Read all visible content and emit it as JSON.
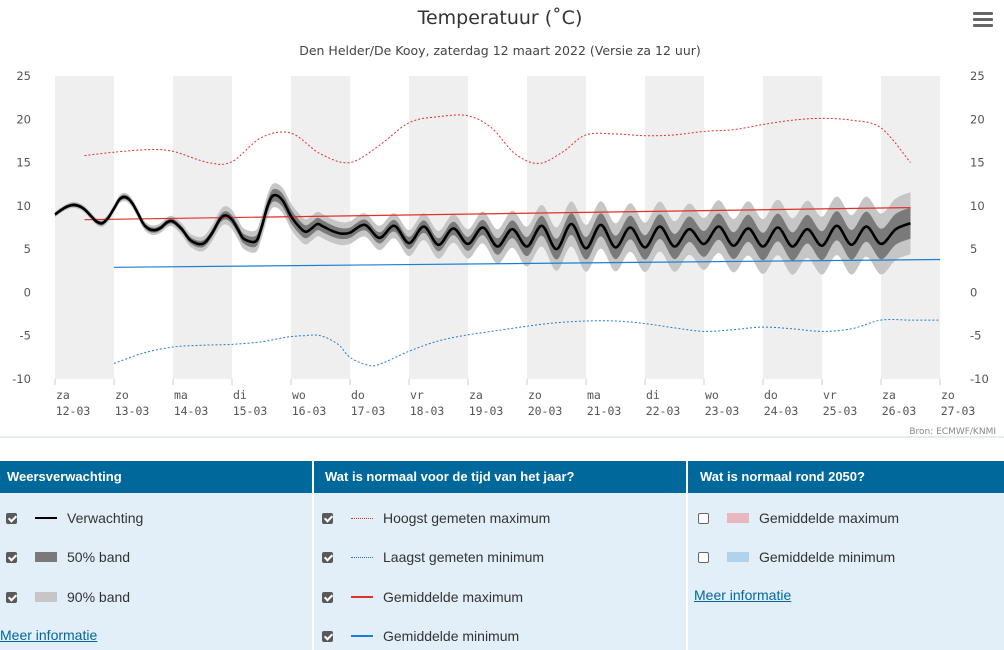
{
  "chart_data": {
    "type": "line",
    "title": "Temperatuur (˚C)",
    "subtitle": "Den Helder/De Kooy, zaterdag 12 maart 2022 (Versie za 12 uur)",
    "credit": "Bron: ECMWF/KNMI",
    "ylim": [
      -10,
      25
    ],
    "yticks": [
      25,
      20,
      15,
      10,
      5,
      0,
      -5,
      -10
    ],
    "x_unit": "day index from 12-03 (0 = za 12-03 00:00)",
    "xlim": [
      0,
      15
    ],
    "x_tick_labels": [
      {
        "day": "za",
        "date": "12-03"
      },
      {
        "day": "zo",
        "date": "13-03"
      },
      {
        "day": "ma",
        "date": "14-03"
      },
      {
        "day": "di",
        "date": "15-03"
      },
      {
        "day": "wo",
        "date": "16-03"
      },
      {
        "day": "do",
        "date": "17-03"
      },
      {
        "day": "vr",
        "date": "18-03"
      },
      {
        "day": "za",
        "date": "19-03"
      },
      {
        "day": "zo",
        "date": "20-03"
      },
      {
        "day": "ma",
        "date": "21-03"
      },
      {
        "day": "di",
        "date": "22-03"
      },
      {
        "day": "wo",
        "date": "23-03"
      },
      {
        "day": "do",
        "date": "24-03"
      },
      {
        "day": "vr",
        "date": "25-03"
      },
      {
        "day": "za",
        "date": "26-03"
      },
      {
        "day": "zo",
        "date": "27-03"
      }
    ],
    "series": [
      {
        "name": "Verwachting",
        "color": "#000000",
        "x": [
          0,
          0.1,
          0.2,
          0.3,
          0.4,
          0.5,
          0.6,
          0.7,
          0.8,
          0.9,
          1.0,
          1.1,
          1.2,
          1.3,
          1.4,
          1.5,
          1.6,
          1.7,
          1.8,
          1.9,
          2.0,
          2.15,
          2.3,
          2.5,
          2.65,
          2.8,
          2.9,
          3.0,
          3.1,
          3.2,
          3.4,
          3.5,
          3.6,
          3.7,
          3.85,
          4.0,
          4.15,
          4.25,
          4.35,
          4.45,
          4.55,
          4.7,
          4.85,
          5.0,
          5.25,
          5.5,
          5.75,
          6.0,
          6.25,
          6.5,
          6.75,
          7.0,
          7.25,
          7.5,
          7.75,
          8.0,
          8.25,
          8.5,
          8.75,
          9.0,
          9.25,
          9.5,
          9.75,
          10.0,
          10.25,
          10.5,
          10.75,
          11.0,
          11.25,
          11.5,
          11.75,
          12.0,
          12.25,
          12.5,
          12.75,
          13.0,
          13.25,
          13.5,
          13.75,
          14.0,
          14.25,
          14.5
        ],
        "y": [
          9.0,
          9.5,
          9.9,
          10.1,
          10.0,
          9.6,
          8.9,
          8.2,
          8.0,
          8.6,
          9.7,
          10.8,
          11.0,
          10.4,
          9.2,
          7.9,
          7.3,
          7.2,
          7.5,
          8.1,
          8.2,
          7.3,
          6.0,
          5.6,
          6.7,
          8.5,
          8.9,
          8.4,
          7.3,
          6.2,
          5.9,
          7.5,
          9.9,
          11.2,
          10.7,
          8.8,
          7.5,
          7.0,
          7.4,
          7.9,
          7.6,
          7.1,
          6.8,
          6.9,
          7.8,
          6.3,
          7.7,
          5.7,
          7.6,
          5.5,
          7.4,
          5.6,
          7.5,
          5.3,
          7.3,
          5.3,
          7.7,
          5.0,
          7.9,
          5.1,
          7.8,
          5.2,
          7.5,
          5.2,
          7.6,
          5.3,
          7.3,
          5.6,
          7.6,
          5.4,
          7.4,
          5.3,
          7.5,
          5.3,
          7.3,
          5.4,
          7.7,
          5.5,
          7.6,
          5.6,
          7.3,
          8.0
        ]
      },
      {
        "name": "50% band",
        "color": "#7a7a7a",
        "half_width": [
          [
            0,
            0.2
          ],
          [
            2,
            0.3
          ],
          [
            3,
            0.5
          ],
          [
            4,
            0.8
          ],
          [
            5,
            0.6
          ],
          [
            7,
            0.8
          ],
          [
            8,
            1.1
          ],
          [
            9,
            1.3
          ],
          [
            11,
            1.5
          ],
          [
            14.5,
            1.8
          ]
        ]
      },
      {
        "name": "90% band",
        "color": "#c6c6c6",
        "half_width": [
          [
            0,
            0.3
          ],
          [
            2,
            0.6
          ],
          [
            3,
            1.1
          ],
          [
            4,
            1.5
          ],
          [
            5,
            1.3
          ],
          [
            7,
            1.7
          ],
          [
            8,
            2.3
          ],
          [
            9,
            2.7
          ],
          [
            11,
            3.0
          ],
          [
            14.5,
            3.6
          ]
        ]
      },
      {
        "name": "Hoogst gemeten maximum",
        "color": "#e0312b",
        "dash": "dotted",
        "x": [
          0.5,
          1.0,
          1.6,
          2.0,
          2.6,
          3.0,
          3.5,
          4.0,
          4.5,
          5.0,
          5.5,
          6.0,
          6.5,
          7.0,
          7.4,
          7.8,
          8.2,
          8.6,
          9.0,
          9.5,
          10.0,
          10.5,
          11.0,
          11.5,
          12.0,
          12.5,
          13.0,
          13.5,
          14.0,
          14.5
        ],
        "y": [
          15.8,
          16.2,
          16.5,
          16.3,
          15.0,
          15.1,
          17.9,
          18.4,
          16.0,
          15.0,
          17.0,
          19.6,
          20.3,
          20.4,
          19.0,
          16.0,
          14.9,
          16.2,
          18.2,
          18.3,
          18.1,
          18.2,
          18.6,
          18.8,
          19.4,
          19.9,
          20.1,
          19.9,
          19.0,
          15.0
        ]
      },
      {
        "name": "Laagst gemeten minimum",
        "color": "#1b7fd1",
        "dash": "dotted",
        "x": [
          1.0,
          1.5,
          2.0,
          2.5,
          3.0,
          3.5,
          3.9,
          4.2,
          4.5,
          4.8,
          5.0,
          5.3,
          5.5,
          6.0,
          6.5,
          7.0,
          7.5,
          8.0,
          8.5,
          9.0,
          9.5,
          10.0,
          10.5,
          11.0,
          11.5,
          12.0,
          12.5,
          13.0,
          13.5,
          14.0,
          14.5,
          15.0
        ],
        "y": [
          -8.2,
          -7.0,
          -6.3,
          -6.1,
          -6.0,
          -5.7,
          -5.2,
          -5.0,
          -5.0,
          -6.0,
          -7.5,
          -8.4,
          -8.3,
          -6.8,
          -5.6,
          -4.9,
          -4.4,
          -3.9,
          -3.5,
          -3.3,
          -3.3,
          -3.6,
          -4.1,
          -4.5,
          -4.3,
          -4.0,
          -4.2,
          -4.5,
          -4.2,
          -3.2,
          -3.2,
          -3.2
        ]
      },
      {
        "name": "Gemiddelde maximum",
        "color": "#e0312b",
        "x": [
          0.5,
          14.5
        ],
        "y": [
          8.4,
          9.8
        ]
      },
      {
        "name": "Gemiddelde minimum",
        "color": "#1b7fd1",
        "x": [
          1.0,
          15.0
        ],
        "y": [
          2.9,
          3.8
        ]
      }
    ],
    "grid": "alternating vertical day bands",
    "legend_placement": "bottom table"
  },
  "menu_icon": "hamburger-icon",
  "legend": {
    "columns": [
      {
        "title": "Weersverwachting",
        "items": [
          {
            "label": "Verwachting",
            "checked": true,
            "symbol": "line",
            "color": "#000000"
          },
          {
            "label": "50% band",
            "checked": true,
            "symbol": "box",
            "color": "#7a7a7a"
          },
          {
            "label": "90% band",
            "checked": true,
            "symbol": "box",
            "color": "#c6c6c6"
          }
        ],
        "link": "Meer informatie"
      },
      {
        "title": "Wat is normaal voor de tijd van het jaar?",
        "items": [
          {
            "label": "Hoogst gemeten maximum",
            "checked": true,
            "symbol": "dotted",
            "color": "#e0312b"
          },
          {
            "label": "Laagst gemeten minimum",
            "checked": true,
            "symbol": "dotted",
            "color": "#1b7fd1"
          },
          {
            "label": "Gemiddelde maximum",
            "checked": true,
            "symbol": "line",
            "color": "#e0312b"
          },
          {
            "label": "Gemiddelde minimum",
            "checked": true,
            "symbol": "line",
            "color": "#1b7fd1"
          }
        ]
      },
      {
        "title": "Wat is normaal rond 2050?",
        "items": [
          {
            "label": "Gemiddelde maximum",
            "checked": false,
            "symbol": "box",
            "color": "#e9b8bf"
          },
          {
            "label": "Gemiddelde minimum",
            "checked": false,
            "symbol": "box",
            "color": "#b0d2ec"
          }
        ],
        "link": "Meer informatie"
      }
    ]
  }
}
